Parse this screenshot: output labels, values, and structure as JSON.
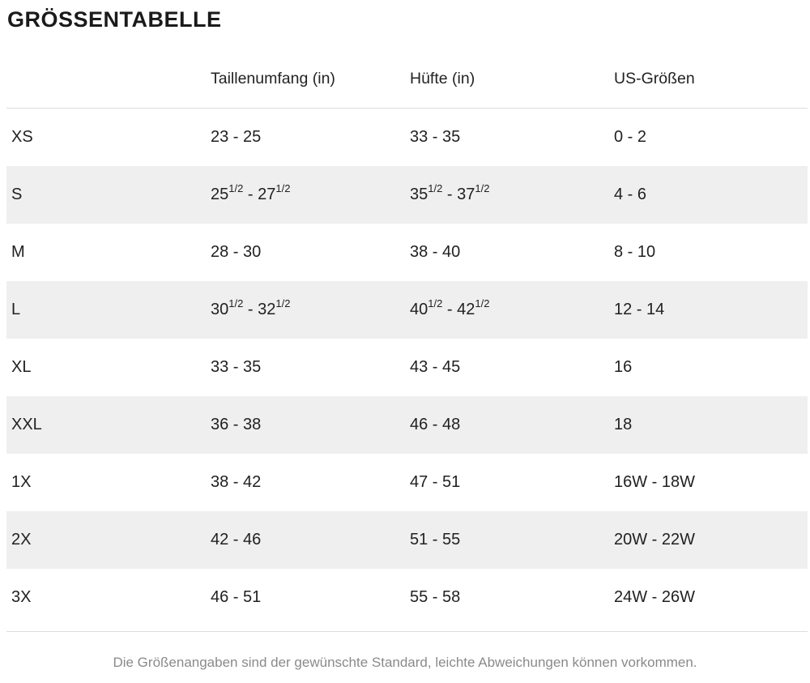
{
  "chart_data": {
    "type": "table",
    "title": "GRÖSSENTABELLE",
    "columns": [
      "",
      "Taillenumfang (in)",
      "Hüfte (in)",
      "US-Größen"
    ],
    "rows": [
      [
        "XS",
        "23 - 25",
        "33 - 35",
        "0 - 2"
      ],
      [
        "S",
        "25 1/2 - 27 1/2",
        "35 1/2 - 37 1/2",
        "4 - 6"
      ],
      [
        "M",
        "28 - 30",
        "38 - 40",
        "8 - 10"
      ],
      [
        "L",
        "30 1/2 - 32 1/2",
        "40 1/2 - 42 1/2",
        "12 - 14"
      ],
      [
        "XL",
        "33 - 35",
        "43 - 45",
        "16"
      ],
      [
        "XXL",
        "36 - 38",
        "46 - 48",
        "18"
      ],
      [
        "1X",
        "38 - 42",
        "47 - 51",
        "16W - 18W"
      ],
      [
        "2X",
        "42 - 46",
        "51 - 55",
        "20W - 22W"
      ],
      [
        "3X",
        "46 - 51",
        "55 - 58",
        "24W - 26W"
      ]
    ],
    "footnote": "Die Größenangaben sind der gewünschte Standard, leichte Abweichungen können vorkommen.",
    "layout": {
      "zebra_striping": true,
      "striped_rows": [
        "S",
        "L",
        "XXL",
        "2X"
      ]
    }
  },
  "colors": {
    "text": "#212121",
    "stripe": "#efefef",
    "divider": "#dddddd",
    "footnote_text": "#8a8a8a"
  }
}
